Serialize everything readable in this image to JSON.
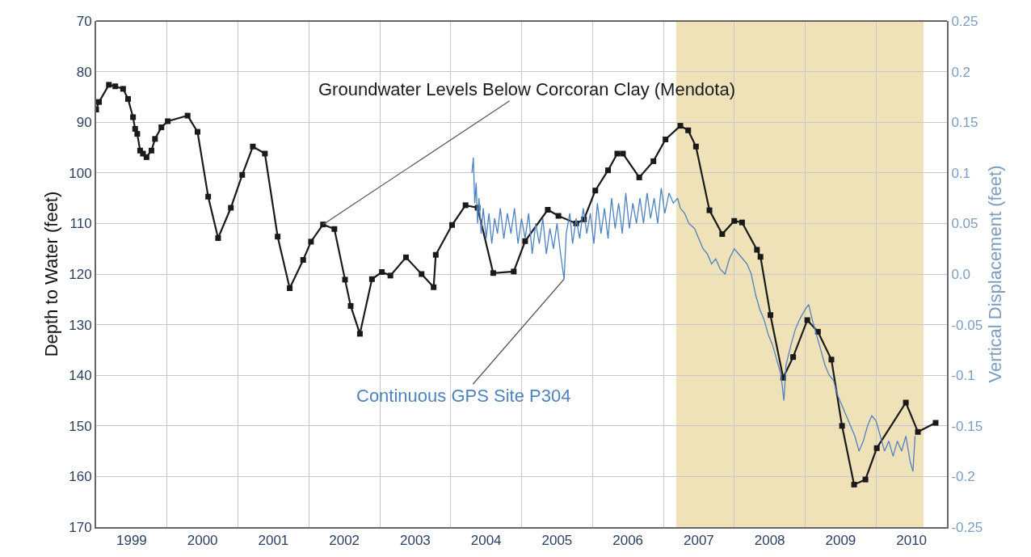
{
  "chart_data": {
    "type": "line",
    "ylabel": "Depth to Water (feet)",
    "y2label": "Vertical Displacement (feet)",
    "xlim": [
      1999,
      2011
    ],
    "xticks": [
      {
        "value": 1999.5,
        "label": "1999"
      },
      {
        "value": 2000.5,
        "label": "2000"
      },
      {
        "value": 2001.5,
        "label": "2001"
      },
      {
        "value": 2002.5,
        "label": "2002"
      },
      {
        "value": 2003.5,
        "label": "2003"
      },
      {
        "value": 2004.5,
        "label": "2004"
      },
      {
        "value": 2005.5,
        "label": "2005"
      },
      {
        "value": 2006.5,
        "label": "2006"
      },
      {
        "value": 2007.5,
        "label": "2007"
      },
      {
        "value": 2008.5,
        "label": "2008"
      },
      {
        "value": 2009.5,
        "label": "2009"
      },
      {
        "value": 2010.5,
        "label": "2010"
      },
      {
        "value": 2000,
        "label": null
      },
      {
        "value": 2001,
        "label": null
      },
      {
        "value": 2002,
        "label": null
      },
      {
        "value": 2003,
        "label": null
      },
      {
        "value": 2004,
        "label": null
      },
      {
        "value": 2005,
        "label": null
      },
      {
        "value": 2006,
        "label": null
      },
      {
        "value": 2007,
        "label": null
      },
      {
        "value": 2008,
        "label": null
      },
      {
        "value": 2009,
        "label": null
      },
      {
        "value": 2010,
        "label": null
      }
    ],
    "ylim": [
      170,
      70
    ],
    "yticks": [
      70,
      80,
      90,
      100,
      110,
      120,
      130,
      140,
      150,
      160,
      170
    ],
    "y2lim": [
      -0.25,
      0.25
    ],
    "y2ticks": [
      {
        "value": 0.25,
        "label": "0.25"
      },
      {
        "value": 0.2,
        "label": "0.2"
      },
      {
        "value": 0.15,
        "label": "0.15"
      },
      {
        "value": 0.1,
        "label": "0.1"
      },
      {
        "value": 0.05,
        "label": "0.05"
      },
      {
        "value": 0,
        "label": "0.0"
      },
      {
        "value": -0.05,
        "label": "-0.05"
      },
      {
        "value": -0.1,
        "label": "-0.1"
      },
      {
        "value": -0.15,
        "label": "-0.15"
      },
      {
        "value": -0.2,
        "label": "-0.2"
      },
      {
        "value": -0.25,
        "label": "-0.25"
      }
    ],
    "grid": true,
    "bands": [
      {
        "axis": "x",
        "from": 2007.18,
        "to": 2010.67,
        "color": "#f0e2b8"
      }
    ],
    "series": [
      {
        "color": "#4f82c0",
        "axis": "y2",
        "marker": "none",
        "x": [
          2004.3,
          2004.32,
          2004.34,
          2004.36,
          2004.38,
          2004.4,
          2004.43,
          2004.46,
          2004.5,
          2004.54,
          2004.58,
          2004.62,
          2004.66,
          2004.7,
          2004.75,
          2004.8,
          2004.85,
          2004.9,
          2004.95,
          2005.0,
          2005.05,
          2005.1,
          2005.15,
          2005.2,
          2005.25,
          2005.3,
          2005.35,
          2005.4,
          2005.45,
          2005.5,
          2005.55,
          2005.6,
          2005.63,
          2005.68,
          2005.72,
          2005.77,
          2005.82,
          2005.87,
          2005.92,
          2005.97,
          2006.02,
          2006.07,
          2006.12,
          2006.17,
          2006.22,
          2006.27,
          2006.32,
          2006.37,
          2006.42,
          2006.47,
          2006.52,
          2006.57,
          2006.62,
          2006.67,
          2006.72,
          2006.77,
          2006.82,
          2006.87,
          2006.92,
          2006.97,
          2007.02,
          2007.08,
          2007.14,
          2007.2,
          2007.24,
          2007.3,
          2007.36,
          2007.44,
          2007.5,
          2007.56,
          2007.62,
          2007.68,
          2007.74,
          2007.8,
          2007.87,
          2007.93,
          2008.0,
          2008.06,
          2008.12,
          2008.18,
          2008.24,
          2008.3,
          2008.36,
          2008.42,
          2008.48,
          2008.54,
          2008.6,
          2008.66,
          2008.7,
          2008.73,
          2008.8,
          2008.86,
          2008.92,
          2009.0,
          2009.05,
          2009.1,
          2009.16,
          2009.22,
          2009.28,
          2009.34,
          2009.4,
          2009.46,
          2009.52,
          2009.58,
          2009.64,
          2009.7,
          2009.76,
          2009.82,
          2009.88,
          2009.94,
          2010.0,
          2010.06,
          2010.12,
          2010.18,
          2010.24,
          2010.3,
          2010.36,
          2010.42,
          2010.48,
          2010.52,
          2010.55
        ],
        "values": [
          0.1,
          0.115,
          0.07,
          0.09,
          0.05,
          0.075,
          0.04,
          0.065,
          0.035,
          0.06,
          0.03,
          0.055,
          0.04,
          0.065,
          0.035,
          0.06,
          0.04,
          0.065,
          0.03,
          0.055,
          0.035,
          0.06,
          0.02,
          0.05,
          0.03,
          0.055,
          0.02,
          0.045,
          0.025,
          0.05,
          0.02,
          -0.005,
          0.04,
          0.06,
          0.03,
          0.055,
          0.035,
          0.065,
          0.04,
          0.06,
          0.03,
          0.07,
          0.04,
          0.065,
          0.035,
          0.075,
          0.045,
          0.07,
          0.04,
          0.08,
          0.045,
          0.07,
          0.05,
          0.075,
          0.05,
          0.08,
          0.055,
          0.075,
          0.05,
          0.085,
          0.06,
          0.08,
          0.07,
          0.075,
          0.065,
          0.06,
          0.05,
          0.045,
          0.035,
          0.025,
          0.02,
          0.01,
          0.015,
          0.005,
          0.0,
          0.015,
          0.025,
          0.02,
          0.015,
          0.01,
          0.0,
          -0.02,
          -0.035,
          -0.045,
          -0.06,
          -0.07,
          -0.085,
          -0.1,
          -0.125,
          -0.09,
          -0.07,
          -0.055,
          -0.045,
          -0.035,
          -0.03,
          -0.045,
          -0.06,
          -0.075,
          -0.09,
          -0.1,
          -0.105,
          -0.12,
          -0.13,
          -0.14,
          -0.15,
          -0.16,
          -0.175,
          -0.165,
          -0.15,
          -0.14,
          -0.145,
          -0.16,
          -0.175,
          -0.165,
          -0.18,
          -0.165,
          -0.175,
          -0.16,
          -0.185,
          -0.195,
          -0.16
        ]
      },
      {
        "color": "#1a1a1a",
        "marker": "square",
        "x": [
          1999.0,
          1999.04,
          1999.18,
          1999.27,
          1999.38,
          1999.45,
          1999.52,
          1999.55,
          1999.58,
          1999.62,
          1999.66,
          1999.71,
          1999.78,
          1999.83,
          1999.92,
          2000.01,
          2000.29,
          2000.43,
          2000.58,
          2000.72,
          2000.9,
          2001.06,
          2001.21,
          2001.38,
          2001.56,
          2001.73,
          2001.92,
          2002.03,
          2002.2,
          2002.36,
          2002.51,
          2002.59,
          2002.72,
          2002.89,
          2003.03,
          2003.15,
          2003.37,
          2003.59,
          2003.76,
          2003.79,
          2004.02,
          2004.21,
          2004.38,
          2004.6,
          2004.89,
          2005.05,
          2005.37,
          2005.52,
          2005.77,
          2005.88,
          2006.04,
          2006.22,
          2006.35,
          2006.43,
          2006.66,
          2006.86,
          2007.03,
          2007.24,
          2007.35,
          2007.46,
          2007.65,
          2007.83,
          2008.0,
          2008.11,
          2008.32,
          2008.37,
          2008.51,
          2008.69,
          2008.83,
          2009.03,
          2009.18,
          2009.37,
          2009.52,
          2009.69,
          2009.85,
          2010.01,
          2010.42,
          2010.59,
          2010.84
        ],
        "values": [
          87.5,
          86,
          82.6,
          82.9,
          83.4,
          85.4,
          89,
          91.3,
          92.3,
          95.6,
          96.2,
          96.9,
          95.6,
          93.3,
          91,
          89.8,
          88.7,
          91.9,
          104.7,
          112.9,
          106.9,
          100.4,
          94.8,
          96.2,
          112.6,
          122.8,
          117.2,
          113.6,
          110.2,
          111.1,
          121.1,
          126.3,
          131.8,
          121.0,
          119.6,
          120.3,
          116.7,
          120.0,
          122.6,
          116.2,
          110.3,
          106.4,
          106.9,
          119.8,
          119.5,
          113.5,
          107.3,
          108.5,
          110.0,
          109.2,
          103.5,
          99.5,
          96.2,
          96.2,
          100.9,
          97.7,
          93.4,
          90.7,
          91.6,
          94.8,
          107.4,
          112.1,
          109.5,
          109.8,
          115.2,
          116.6,
          128.1,
          140.5,
          136.4,
          129.1,
          131.4,
          136.9,
          150.0,
          161.6,
          160.6,
          154.4,
          145.4,
          151.2,
          149.4
        ]
      }
    ],
    "annotations": [
      {
        "text": "Groundwater Levels Below Corcoran Clay (Mendota)",
        "x": 2002.2,
        "y": 110.2
      },
      {
        "text": "Continuous GPS Site P304",
        "x": 2005.6,
        "y": 121
      }
    ]
  }
}
